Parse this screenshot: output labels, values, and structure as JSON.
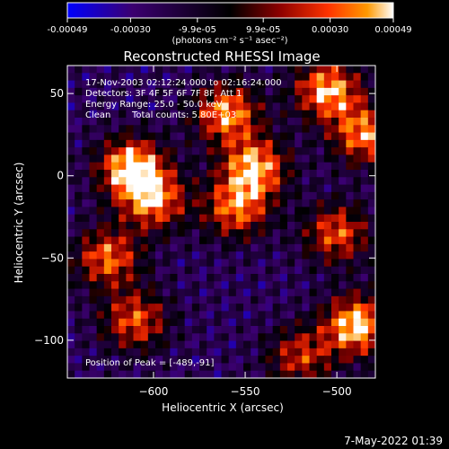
{
  "colorbar": {
    "ticks": [
      "-0.00049",
      "-0.00030",
      "-9.9e-05",
      "9.9e-05",
      "0.00030",
      "0.00049"
    ],
    "tick_values": [
      -0.00049,
      -0.0003,
      -9.9e-05,
      9.9e-05,
      0.0003,
      0.00049
    ],
    "range": [
      -0.00049,
      0.00049
    ],
    "unit_label": "(photons cm⁻² s⁻¹ asec⁻²)",
    "colors": [
      "#0000ff",
      "#3b0070",
      "#000000",
      "#8b0000",
      "#ff3300",
      "#ff9900",
      "#ffffff"
    ]
  },
  "chart_data": {
    "type": "heatmap",
    "title": "Reconstructed RHESSI Image",
    "xlabel": "Heliocentric X (arcsec)",
    "ylabel": "Heliocentric Y (arcsec)",
    "xlim": [
      -647,
      -479
    ],
    "ylim": [
      -123,
      67
    ],
    "x_ticks": [
      -600,
      -550,
      -500
    ],
    "y_ticks": [
      50,
      0,
      -50,
      -100
    ],
    "peak_position": [
      -489,
      -91
    ],
    "hotspots": [
      {
        "x": -612,
        "y": 5,
        "v": 1.0
      },
      {
        "x": -600,
        "y": -15,
        "v": 0.8
      },
      {
        "x": -625,
        "y": -50,
        "v": 0.75
      },
      {
        "x": -610,
        "y": -88,
        "v": 0.7
      },
      {
        "x": -560,
        "y": 38,
        "v": 0.85
      },
      {
        "x": -545,
        "y": 5,
        "v": 0.9
      },
      {
        "x": -555,
        "y": -20,
        "v": 0.75
      },
      {
        "x": -505,
        "y": 52,
        "v": 0.9
      },
      {
        "x": -485,
        "y": 25,
        "v": 0.8
      },
      {
        "x": -500,
        "y": -35,
        "v": 0.7
      },
      {
        "x": -489,
        "y": -91,
        "v": 1.0
      },
      {
        "x": -520,
        "y": -110,
        "v": 0.6
      }
    ]
  },
  "annotations": {
    "time_range": "17-Nov-2003 02:12:24.000 to 02:16:24.000",
    "detectors": "Detectors: 3F 4F 5F 6F 7F 8F, Att 1",
    "energy_range": "Energy Range: 25.0 - 50.0 keV",
    "clean": "Clean",
    "total_counts": "Total counts: 5.80E+03",
    "peak": "Position of Peak = [-489,-91]"
  },
  "footer": {
    "timestamp": "7-May-2022 01:39"
  }
}
